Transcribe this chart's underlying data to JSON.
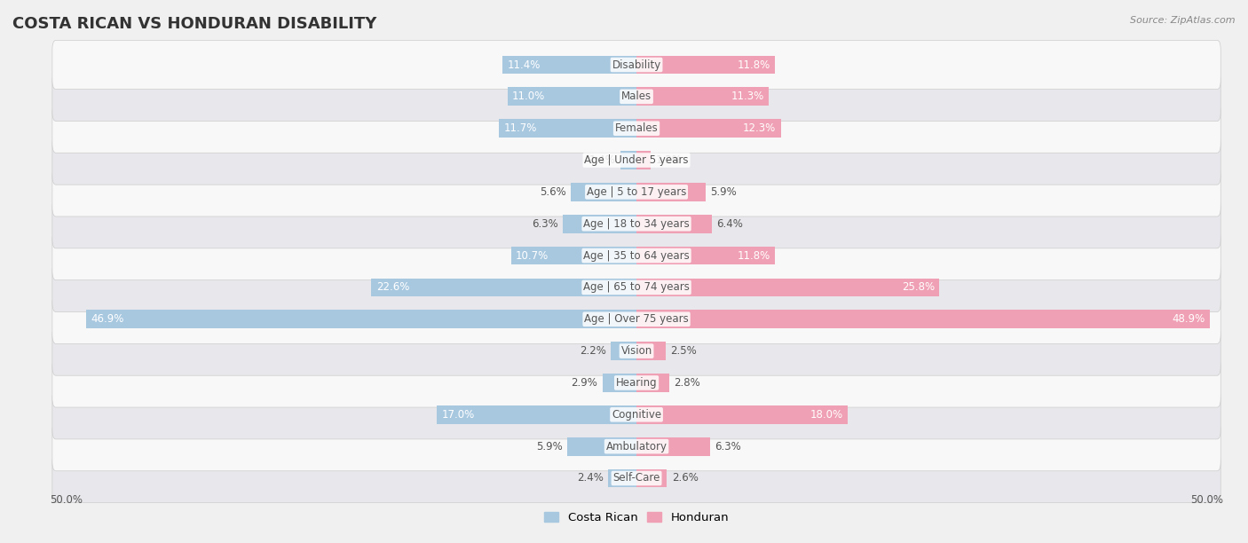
{
  "title": "COSTA RICAN VS HONDURAN DISABILITY",
  "source": "Source: ZipAtlas.com",
  "categories": [
    "Disability",
    "Males",
    "Females",
    "Age | Under 5 years",
    "Age | 5 to 17 years",
    "Age | 18 to 34 years",
    "Age | 35 to 64 years",
    "Age | 65 to 74 years",
    "Age | Over 75 years",
    "Vision",
    "Hearing",
    "Cognitive",
    "Ambulatory",
    "Self-Care"
  ],
  "costa_rican": [
    11.4,
    11.0,
    11.7,
    1.4,
    5.6,
    6.3,
    10.7,
    22.6,
    46.9,
    2.2,
    2.9,
    17.0,
    5.9,
    2.4
  ],
  "honduran": [
    11.8,
    11.3,
    12.3,
    1.2,
    5.9,
    6.4,
    11.8,
    25.8,
    48.9,
    2.5,
    2.8,
    18.0,
    6.3,
    2.6
  ],
  "max_val": 50.0,
  "costa_rican_color": "#a8c8e0",
  "honduran_color": "#f0a0b4",
  "bg_color": "#f0f0f0",
  "row_bg_odd": "#f8f8f8",
  "row_bg_even": "#e8e8ec",
  "bar_height": 0.58,
  "title_fontsize": 13,
  "label_fontsize": 8.5,
  "value_fontsize": 8.5,
  "legend_fontsize": 9.5,
  "value_color_outside": "#555555",
  "value_color_inside": "#ffffff",
  "category_color": "#555555"
}
